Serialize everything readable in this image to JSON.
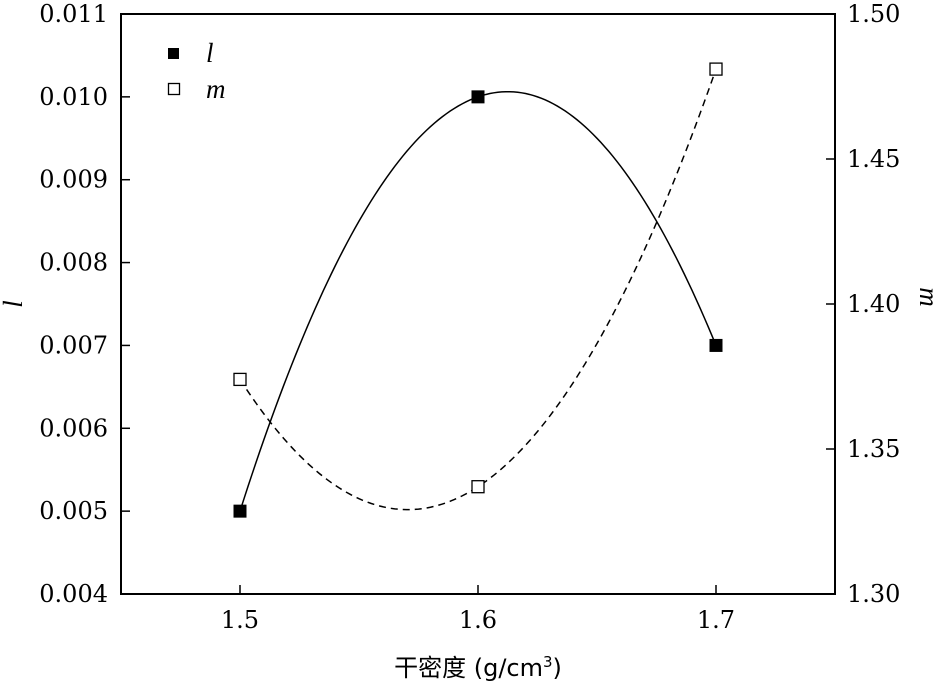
{
  "chart_data": {
    "type": "line",
    "x": [
      1.5,
      1.6,
      1.7
    ],
    "xlim": [
      1.45,
      1.75
    ],
    "xticks": [
      "1.5",
      "1.6",
      "1.7"
    ],
    "xlabel": "干密度 (g/cm³)",
    "xlabel_main": "干密度 (g/cm",
    "xlabel_sup": "3",
    "xlabel_end": ")",
    "ylabel_left": "l",
    "ylim_left": [
      0.004,
      0.011
    ],
    "yticks_left": [
      "0.004",
      "0.005",
      "0.006",
      "0.007",
      "0.008",
      "0.009",
      "0.010",
      "0.011"
    ],
    "ylabel_right": "m",
    "ylim_right": [
      1.3,
      1.5
    ],
    "yticks_right": [
      "1.30",
      "1.35",
      "1.40",
      "1.45",
      "1.50"
    ],
    "grid": false,
    "legend_position": "top-left",
    "series": [
      {
        "name": "l",
        "axis": "left",
        "marker": "filled-square",
        "line": "solid",
        "values": [
          0.005,
          0.01,
          0.007
        ]
      },
      {
        "name": "m",
        "axis": "right",
        "marker": "open-square",
        "line": "dashed",
        "values": [
          1.374,
          1.337,
          1.481
        ]
      }
    ]
  }
}
